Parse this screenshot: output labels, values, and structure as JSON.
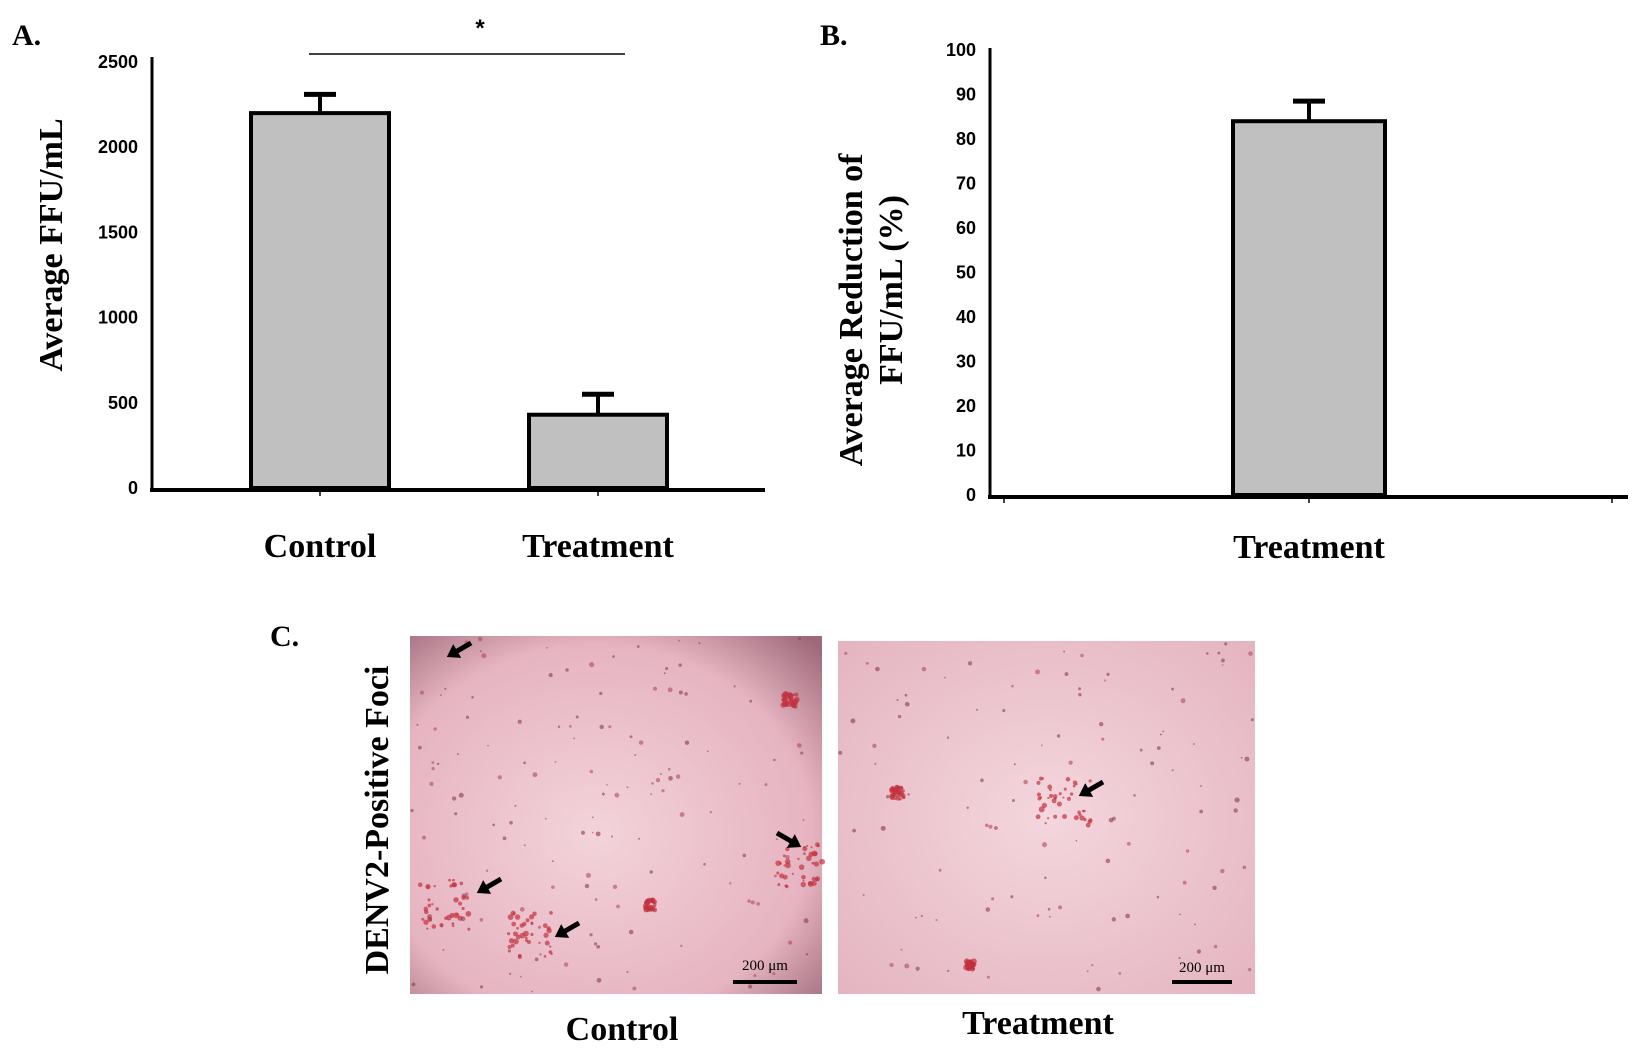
{
  "panels": {
    "a_label": "A.",
    "b_label": "B.",
    "c_label": "C."
  },
  "chart_data": [
    {
      "type": "bar",
      "categories": [
        "Control",
        "Treatment"
      ],
      "values": [
        2200,
        430
      ],
      "errors": [
        110,
        120
      ],
      "ylabel": "Average FFU/mL",
      "ylim": [
        0,
        2500
      ],
      "yticks": [
        0,
        500,
        1000,
        1500,
        2000,
        2500
      ],
      "significance": "*",
      "bar_color": "#c0c0c0"
    },
    {
      "type": "bar",
      "categories": [
        "Treatment"
      ],
      "values": [
        84
      ],
      "errors": [
        4.5
      ],
      "ylabel_line1": "Average Reduction of",
      "ylabel_line2": "FFU/mL (%)",
      "ylim": [
        0,
        100
      ],
      "yticks": [
        0,
        10,
        20,
        30,
        40,
        50,
        60,
        70,
        80,
        90,
        100
      ],
      "bar_color": "#c0c0c0"
    }
  ],
  "micrographs": {
    "ylabel": "DENV2-Positive Foci",
    "labels": [
      "Control",
      "Treatment"
    ],
    "scale_bar": "200 μm",
    "background_color": "#ecc3cd",
    "arrow_counts": [
      4,
      1
    ]
  }
}
